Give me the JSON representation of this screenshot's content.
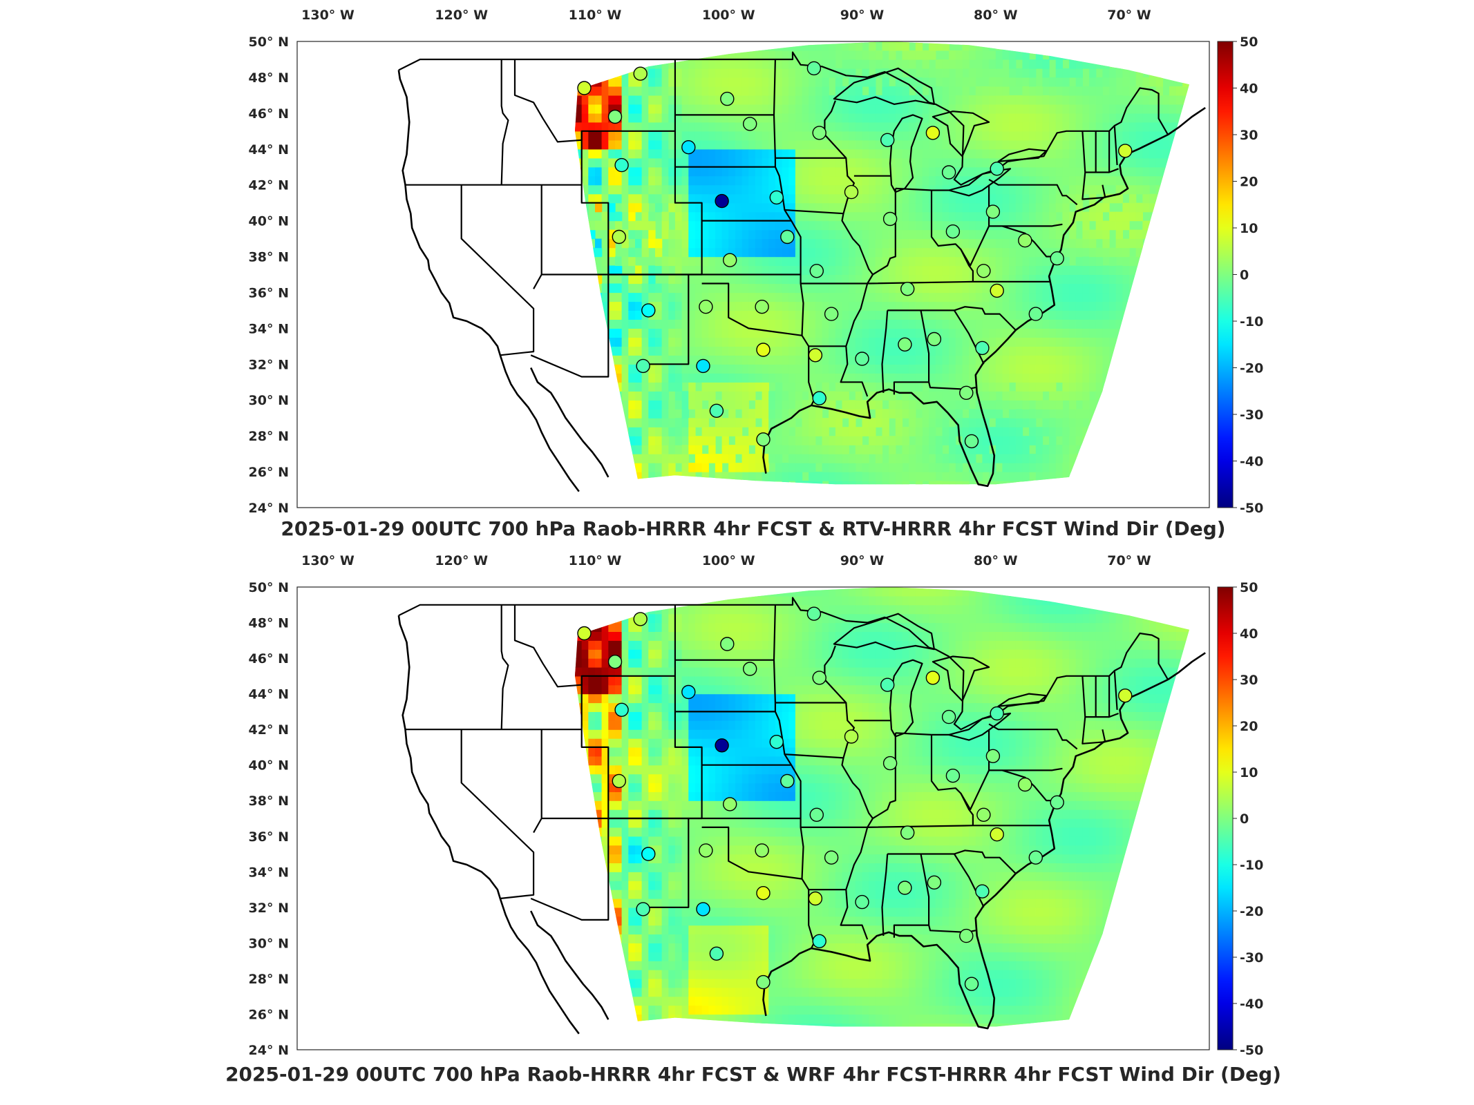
{
  "panels": [
    {
      "title": "2025-01-29 00UTC 700 hPa Raob-HRRR 4hr FCST & RTV-HRRR 4hr FCST Wind Dir (Deg)",
      "style": "patchy",
      "stations": [
        {
          "lon": -110.8,
          "lat": 47.4,
          "v": 8
        },
        {
          "lon": -106.6,
          "lat": 48.2,
          "v": 5
        },
        {
          "lon": -108.5,
          "lat": 45.8,
          "v": 0
        },
        {
          "lon": -108.0,
          "lat": 43.1,
          "v": -8
        },
        {
          "lon": -103.0,
          "lat": 44.1,
          "v": -15
        },
        {
          "lon": -100.1,
          "lat": 46.8,
          "v": 0
        },
        {
          "lon": -98.4,
          "lat": 45.4,
          "v": 0
        },
        {
          "lon": -93.6,
          "lat": 48.5,
          "v": -3
        },
        {
          "lon": -93.2,
          "lat": 44.9,
          "v": 0
        },
        {
          "lon": -88.1,
          "lat": 44.5,
          "v": -5
        },
        {
          "lon": -84.7,
          "lat": 44.9,
          "v": 10
        },
        {
          "lon": -83.5,
          "lat": 42.7,
          "v": -2
        },
        {
          "lon": -79.9,
          "lat": 42.9,
          "v": -5
        },
        {
          "lon": -70.3,
          "lat": 43.9,
          "v": 8
        },
        {
          "lon": -100.5,
          "lat": 41.1,
          "v": -48
        },
        {
          "lon": -96.4,
          "lat": 41.3,
          "v": -8
        },
        {
          "lon": -90.8,
          "lat": 41.6,
          "v": 5
        },
        {
          "lon": -87.9,
          "lat": 40.1,
          "v": 0
        },
        {
          "lon": -83.2,
          "lat": 39.4,
          "v": -2
        },
        {
          "lon": -80.2,
          "lat": 40.5,
          "v": 0
        },
        {
          "lon": -77.8,
          "lat": 38.9,
          "v": 2
        },
        {
          "lon": -75.4,
          "lat": 37.9,
          "v": -2
        },
        {
          "lon": -108.2,
          "lat": 39.1,
          "v": 5
        },
        {
          "lon": -106.0,
          "lat": 35.0,
          "v": -12
        },
        {
          "lon": -101.7,
          "lat": 35.2,
          "v": 2
        },
        {
          "lon": -97.5,
          "lat": 35.2,
          "v": 2
        },
        {
          "lon": -95.6,
          "lat": 39.1,
          "v": -3
        },
        {
          "lon": -99.9,
          "lat": 37.8,
          "v": 2
        },
        {
          "lon": -93.4,
          "lat": 37.2,
          "v": -2
        },
        {
          "lon": -92.3,
          "lat": 34.8,
          "v": 0
        },
        {
          "lon": -86.6,
          "lat": 36.2,
          "v": 0
        },
        {
          "lon": -80.9,
          "lat": 37.2,
          "v": 2
        },
        {
          "lon": -79.9,
          "lat": 36.1,
          "v": 8
        },
        {
          "lon": -77.0,
          "lat": 34.8,
          "v": -2
        },
        {
          "lon": -106.4,
          "lat": 31.9,
          "v": -5
        },
        {
          "lon": -101.9,
          "lat": 31.9,
          "v": -15
        },
        {
          "lon": -97.4,
          "lat": 32.8,
          "v": 10
        },
        {
          "lon": -93.5,
          "lat": 32.5,
          "v": 8
        },
        {
          "lon": -90.0,
          "lat": 32.3,
          "v": -3
        },
        {
          "lon": -86.8,
          "lat": 33.1,
          "v": 0
        },
        {
          "lon": -84.6,
          "lat": 33.4,
          "v": 0
        },
        {
          "lon": -81.0,
          "lat": 32.9,
          "v": -5
        },
        {
          "lon": -100.9,
          "lat": 29.4,
          "v": -5
        },
        {
          "lon": -97.4,
          "lat": 27.8,
          "v": 0
        },
        {
          "lon": -93.2,
          "lat": 30.1,
          "v": -8
        },
        {
          "lon": -82.2,
          "lat": 30.4,
          "v": 0
        },
        {
          "lon": -81.8,
          "lat": 27.7,
          "v": -2
        }
      ]
    },
    {
      "title": "2025-01-29 00UTC 700 hPa Raob-HRRR 4hr FCST & WRF 4hr FCST-HRRR 4hr FCST Wind Dir (Deg)",
      "style": "smooth",
      "stations": [
        {
          "lon": -110.8,
          "lat": 47.4,
          "v": 8
        },
        {
          "lon": -106.6,
          "lat": 48.2,
          "v": 5
        },
        {
          "lon": -108.5,
          "lat": 45.8,
          "v": 0
        },
        {
          "lon": -108.0,
          "lat": 43.1,
          "v": -8
        },
        {
          "lon": -103.0,
          "lat": 44.1,
          "v": -15
        },
        {
          "lon": -100.1,
          "lat": 46.8,
          "v": 0
        },
        {
          "lon": -98.4,
          "lat": 45.4,
          "v": 0
        },
        {
          "lon": -93.6,
          "lat": 48.5,
          "v": -3
        },
        {
          "lon": -93.2,
          "lat": 44.9,
          "v": 0
        },
        {
          "lon": -88.1,
          "lat": 44.5,
          "v": -5
        },
        {
          "lon": -84.7,
          "lat": 44.9,
          "v": 10
        },
        {
          "lon": -83.5,
          "lat": 42.7,
          "v": -2
        },
        {
          "lon": -79.9,
          "lat": 42.9,
          "v": -5
        },
        {
          "lon": -70.3,
          "lat": 43.9,
          "v": 8
        },
        {
          "lon": -100.5,
          "lat": 41.1,
          "v": -48
        },
        {
          "lon": -96.4,
          "lat": 41.3,
          "v": -8
        },
        {
          "lon": -90.8,
          "lat": 41.6,
          "v": 5
        },
        {
          "lon": -87.9,
          "lat": 40.1,
          "v": 0
        },
        {
          "lon": -83.2,
          "lat": 39.4,
          "v": -2
        },
        {
          "lon": -80.2,
          "lat": 40.5,
          "v": 0
        },
        {
          "lon": -77.8,
          "lat": 38.9,
          "v": 2
        },
        {
          "lon": -75.4,
          "lat": 37.9,
          "v": -2
        },
        {
          "lon": -108.2,
          "lat": 39.1,
          "v": 5
        },
        {
          "lon": -106.0,
          "lat": 35.0,
          "v": -12
        },
        {
          "lon": -101.7,
          "lat": 35.2,
          "v": 2
        },
        {
          "lon": -97.5,
          "lat": 35.2,
          "v": 2
        },
        {
          "lon": -95.6,
          "lat": 39.1,
          "v": -3
        },
        {
          "lon": -99.9,
          "lat": 37.8,
          "v": 2
        },
        {
          "lon": -93.4,
          "lat": 37.2,
          "v": -2
        },
        {
          "lon": -92.3,
          "lat": 34.8,
          "v": 0
        },
        {
          "lon": -86.6,
          "lat": 36.2,
          "v": 0
        },
        {
          "lon": -80.9,
          "lat": 37.2,
          "v": 2
        },
        {
          "lon": -79.9,
          "lat": 36.1,
          "v": 8
        },
        {
          "lon": -77.0,
          "lat": 34.8,
          "v": -2
        },
        {
          "lon": -106.4,
          "lat": 31.9,
          "v": -5
        },
        {
          "lon": -101.9,
          "lat": 31.9,
          "v": -15
        },
        {
          "lon": -97.4,
          "lat": 32.8,
          "v": 10
        },
        {
          "lon": -93.5,
          "lat": 32.5,
          "v": 8
        },
        {
          "lon": -90.0,
          "lat": 32.3,
          "v": -3
        },
        {
          "lon": -86.8,
          "lat": 33.1,
          "v": 0
        },
        {
          "lon": -84.6,
          "lat": 33.4,
          "v": 0
        },
        {
          "lon": -81.0,
          "lat": 32.9,
          "v": -5
        },
        {
          "lon": -100.9,
          "lat": 29.4,
          "v": -5
        },
        {
          "lon": -97.4,
          "lat": 27.8,
          "v": 0
        },
        {
          "lon": -93.2,
          "lat": 30.1,
          "v": -8
        },
        {
          "lon": -82.2,
          "lat": 30.4,
          "v": 0
        },
        {
          "lon": -81.8,
          "lat": 27.7,
          "v": -2
        }
      ]
    }
  ],
  "lon_ticks": [
    "130° W",
    "120° W",
    "110° W",
    "100° W",
    "90° W",
    "80° W",
    "70° W"
  ],
  "lat_ticks": [
    "50° N",
    "48° N",
    "46° N",
    "44° N",
    "42° N",
    "40° N",
    "38° N",
    "36° N",
    "34° N",
    "32° N",
    "30° N",
    "28° N",
    "26° N",
    "24° N"
  ],
  "colorbar": {
    "min": -50,
    "max": 50,
    "ticks": [
      "50",
      "40",
      "30",
      "20",
      "10",
      "0",
      "-10",
      "-20",
      "-30",
      "-40",
      "-50"
    ],
    "colormap": "jet",
    "colors": [
      "#00008f",
      "#0000ff",
      "#00ffff",
      "#ffff00",
      "#ff0000",
      "#800000"
    ]
  }
}
